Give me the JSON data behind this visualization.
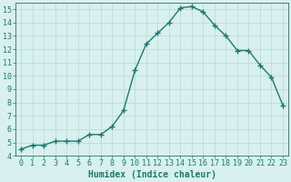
{
  "x": [
    0,
    1,
    2,
    3,
    4,
    5,
    6,
    7,
    8,
    9,
    10,
    11,
    12,
    13,
    14,
    15,
    16,
    17,
    18,
    19,
    20,
    21,
    22,
    23
  ],
  "y": [
    4.5,
    4.8,
    4.8,
    5.1,
    5.1,
    5.1,
    5.6,
    5.6,
    6.2,
    7.4,
    10.4,
    12.4,
    13.2,
    14.0,
    15.1,
    15.2,
    14.8,
    13.8,
    13.0,
    11.9,
    11.9,
    10.8,
    9.9,
    7.8
  ],
  "line_color": "#1a7a6e",
  "marker": "+",
  "marker_size": 4,
  "line_width": 1.0,
  "bg_color": "#d8f0ee",
  "grid_color": "#b8d8d4",
  "xlabel": "Humidex (Indice chaleur)",
  "xlabel_fontsize": 7,
  "tick_fontsize": 6,
  "ylim": [
    4,
    15.5
  ],
  "xlim": [
    -0.5,
    23.5
  ],
  "yticks": [
    4,
    5,
    6,
    7,
    8,
    9,
    10,
    11,
    12,
    13,
    14,
    15
  ],
  "xticks": [
    0,
    1,
    2,
    3,
    4,
    5,
    6,
    7,
    8,
    9,
    10,
    11,
    12,
    13,
    14,
    15,
    16,
    17,
    18,
    19,
    20,
    21,
    22,
    23
  ]
}
